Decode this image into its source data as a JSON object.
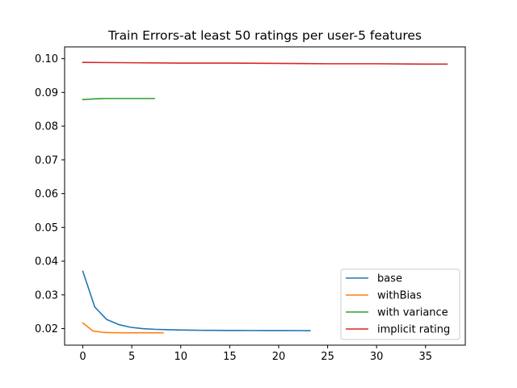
{
  "chart_data": {
    "type": "line",
    "title": "Train Errors-at least 50 ratings per user-5 features",
    "xlabel": "",
    "ylabel": "",
    "xlim": [
      -1.86,
      39.06
    ],
    "ylim": [
      0.0151,
      0.1035
    ],
    "x_ticks": [
      0,
      5,
      10,
      15,
      20,
      25,
      30,
      35
    ],
    "y_ticks": [
      0.02,
      0.03,
      0.04,
      0.05,
      0.06,
      0.07,
      0.08,
      0.09,
      0.1
    ],
    "x_tick_labels": [
      "0",
      "5",
      "10",
      "15",
      "20",
      "25",
      "30",
      "35"
    ],
    "y_tick_labels": [
      "0.02",
      "0.03",
      "0.04",
      "0.05",
      "0.06",
      "0.07",
      "0.08",
      "0.09",
      "0.10"
    ],
    "grid": false,
    "legend_position": "lower-right",
    "series": [
      {
        "name": "base",
        "color": "#1f77b4",
        "x": [
          0,
          1.22,
          2.44,
          3.66,
          4.88,
          6.1,
          7.32,
          8.54,
          9.76,
          10.98,
          12.2,
          13.42,
          14.64,
          15.86,
          17.08,
          18.3,
          19.52,
          20.74,
          21.96,
          23.2
        ],
        "y": [
          0.037,
          0.0264,
          0.0227,
          0.0212,
          0.0204,
          0.02,
          0.0198,
          0.0197,
          0.0196,
          0.01955,
          0.0195,
          0.01948,
          0.01946,
          0.01945,
          0.01944,
          0.01943,
          0.01942,
          0.01942,
          0.01941,
          0.0194
        ]
      },
      {
        "name": "withBias",
        "color": "#ff7f0e",
        "x": [
          0,
          1.03,
          2.06,
          3.09,
          4.12,
          5.15,
          6.18,
          7.21,
          8.2
        ],
        "y": [
          0.0217,
          0.0193,
          0.0189,
          0.0188,
          0.01878,
          0.01877,
          0.01877,
          0.01876,
          0.01876
        ]
      },
      {
        "name": "with variance",
        "color": "#2ca02c",
        "x": [
          0,
          1.2,
          2.4,
          3.6,
          4.8,
          6.0,
          7.3
        ],
        "y": [
          0.0879,
          0.0881,
          0.0882,
          0.0882,
          0.0882,
          0.0882,
          0.0882
        ]
      },
      {
        "name": "implicit rating",
        "color": "#d62728",
        "x": [
          0,
          5,
          10,
          15,
          20,
          25,
          30,
          35,
          37.2
        ],
        "y": [
          0.0989,
          0.0988,
          0.0987,
          0.0987,
          0.0986,
          0.0985,
          0.0985,
          0.0984,
          0.0984
        ]
      }
    ]
  }
}
